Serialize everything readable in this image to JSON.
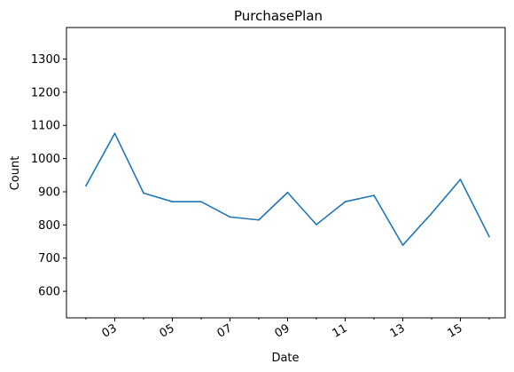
{
  "chart_data": {
    "type": "line",
    "title": "PurchasePlan",
    "xlabel": "Date",
    "ylabel": "Count",
    "x_tick_labels": [
      "03",
      "05",
      "07",
      "09",
      "11",
      "13",
      "15"
    ],
    "y_tick_labels": [
      "600",
      "700",
      "800",
      "900",
      "1000",
      "1100",
      "1200",
      "1300"
    ],
    "ylim": [
      520,
      1395
    ],
    "grid": false,
    "series": [
      {
        "color": "#1f77b4",
        "points": [
          {
            "x": "02",
            "y": 918
          },
          {
            "x": "03",
            "y": 1076
          },
          {
            "x": "04",
            "y": 896
          },
          {
            "x": "05",
            "y": 870
          },
          {
            "x": "06",
            "y": 870
          },
          {
            "x": "07",
            "y": 824
          },
          {
            "x": "08",
            "y": 815
          },
          {
            "x": "09",
            "y": 898
          },
          {
            "x": "10",
            "y": 801
          },
          {
            "x": "11",
            "y": 870
          },
          {
            "x": "12",
            "y": 889
          },
          {
            "x": "13",
            "y": 739
          },
          {
            "x": "14",
            "y": 835
          },
          {
            "x": "15",
            "y": 937
          },
          {
            "x": "16",
            "y": 765
          }
        ]
      }
    ]
  }
}
